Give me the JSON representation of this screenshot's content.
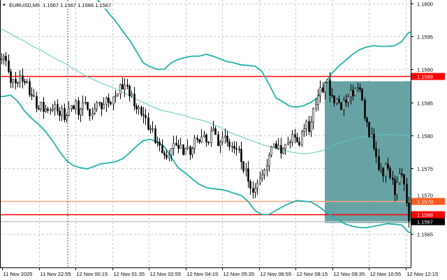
{
  "header": {
    "symbol": "EURUSD,M5",
    "ohlc": "1.1567 1.1567 1.1566 1.1567",
    "menu_icon": "triangle-down-icon"
  },
  "colors": {
    "background": "#ffffff",
    "grid": "#c8c8c8",
    "bands": "#20b2aa",
    "middle": "#5fc8c0",
    "resistance": "#ff0000",
    "level_orange": "#ff7f50",
    "zone": "#5f9ea0",
    "bull": "#ffffff",
    "bear": "#000000"
  },
  "chart_data": {
    "type": "candlestick",
    "title": "",
    "symbol": "EURUSD",
    "timeframe": "M5",
    "ylim": [
      1.1561,
      1.16
    ],
    "grid": true,
    "y_ticks": [
      "1.1600",
      "1.1595",
      "1.1590",
      "1.1585",
      "1.1580",
      "1.1575",
      "1.1570",
      "1.1565"
    ],
    "y_tick_values": [
      1.16,
      1.1595,
      1.159,
      1.1585,
      1.158,
      1.1575,
      1.157,
      1.1565
    ],
    "x_ticks": [
      "11 Nov 2025",
      "11 Nov 22:55",
      "12 Nov 00:15",
      "12 Nov 01:35",
      "12 Nov 02:55",
      "12 Nov 04:15",
      "12 Nov 05:35",
      "12 Nov 06:55",
      "12 Nov 08:15",
      "12 Nov 09:35",
      "12 Nov 10:55",
      "12 Nov 12:15"
    ],
    "closes_15m": [
      1.1592,
      1.1588,
      1.1588,
      1.1588,
      1.1586,
      1.1584,
      1.1584,
      1.1584,
      1.1583,
      1.1583,
      1.1584,
      1.1584,
      1.1584,
      1.1584,
      1.1584,
      1.1585,
      1.1586,
      1.1587,
      1.1586,
      1.1584,
      1.1583,
      1.1581,
      1.1579,
      1.1577,
      1.1578,
      1.1578,
      1.1578,
      1.1578,
      1.1579,
      1.1579,
      1.1581,
      1.1579,
      1.1579,
      1.1578,
      1.1576,
      1.1573,
      1.1572,
      1.1574,
      1.1577,
      1.1578,
      1.1578,
      1.1579,
      1.1579,
      1.1581,
      1.1582,
      1.1586,
      1.1588,
      1.1586,
      1.1585,
      1.1585,
      1.1586,
      1.1587,
      1.1582,
      1.1578,
      1.1575,
      1.1575,
      1.1571,
      1.1574,
      1.1567
    ],
    "bollinger_upper": [
      1.16064,
      1.1606,
      1.1605,
      1.1605,
      1.1604,
      1.1604,
      1.1603,
      1.1603,
      1.1602,
      1.1602,
      1.1602,
      1.1601,
      1.1601,
      1.1601,
      1.16,
      1.15986,
      1.15974,
      1.15959,
      1.15945,
      1.15928,
      1.1591,
      1.15904,
      1.159,
      1.159,
      1.1591,
      1.15915,
      1.15918,
      1.1592,
      1.1592,
      1.15923,
      1.1592,
      1.15916,
      1.15912,
      1.1591,
      1.15907,
      1.15906,
      1.15905,
      1.15897,
      1.15878,
      1.15857,
      1.15851,
      1.15844,
      1.15843,
      1.15845,
      1.1585,
      1.15857,
      1.15878,
      1.15894,
      1.15905,
      1.15914,
      1.15923,
      1.1593,
      1.15934,
      1.15936,
      1.15935,
      1.15935,
      1.15936,
      1.15942,
      1.15956
    ],
    "bollinger_middle": [
      1.1596,
      1.15954,
      1.15948,
      1.15943,
      1.15936,
      1.15931,
      1.15925,
      1.15919,
      1.15913,
      1.15908,
      1.15901,
      1.15895,
      1.15889,
      1.15884,
      1.15879,
      1.15875,
      1.15871,
      1.15866,
      1.1586,
      1.15855,
      1.1585,
      1.15845,
      1.1584,
      1.15837,
      1.15835,
      1.15832,
      1.1583,
      1.15826,
      1.15824,
      1.15821,
      1.15817,
      1.15812,
      1.15806,
      1.15802,
      1.15798,
      1.15794,
      1.1579,
      1.15786,
      1.15783,
      1.1578,
      1.15778,
      1.15775,
      1.15773,
      1.15772,
      1.15773,
      1.15775,
      1.15778,
      1.15783,
      1.15788,
      1.15791,
      1.15794,
      1.15797,
      1.15799,
      1.158,
      1.15801,
      1.15801,
      1.15801,
      1.158,
      1.15799
    ],
    "bollinger_lower": [
      1.15859,
      1.15861,
      1.15852,
      1.15837,
      1.15826,
      1.15817,
      1.15806,
      1.15792,
      1.15776,
      1.15762,
      1.15754,
      1.15751,
      1.15749,
      1.15753,
      1.15757,
      1.15758,
      1.1576,
      1.15764,
      1.15773,
      1.15783,
      1.15792,
      1.15794,
      1.1579,
      1.15783,
      1.15767,
      1.15751,
      1.15743,
      1.15734,
      1.15726,
      1.15721,
      1.15719,
      1.15718,
      1.15716,
      1.15712,
      1.15709,
      1.157,
      1.15686,
      1.1568,
      1.1568,
      1.15686,
      1.15692,
      1.15697,
      1.15701,
      1.157,
      1.15699,
      1.15693,
      1.15685,
      1.15678,
      1.15671,
      1.15665,
      1.15662,
      1.1566,
      1.1566,
      1.15662,
      1.15664,
      1.15666,
      1.15665,
      1.15664,
      1.15653
    ],
    "levels": [
      {
        "price": 1.1589,
        "label": "1.1589",
        "color": "#ff0000",
        "label_bg": "#ff0000"
      },
      {
        "price": 1.157,
        "label": "1.1570",
        "color": "#ffa07a",
        "label_bg": "#ff5a1e"
      },
      {
        "price": 1.1568,
        "label": "1.1568",
        "color": "#ff0000",
        "label_bg": "#ff0000"
      },
      {
        "price": 1.1567,
        "label": "1.1567",
        "color": "#c8c8c8",
        "label_bg": "#000000"
      }
    ],
    "zone": {
      "price_top": 1.15882,
      "price_bottom": 1.15667
    }
  }
}
